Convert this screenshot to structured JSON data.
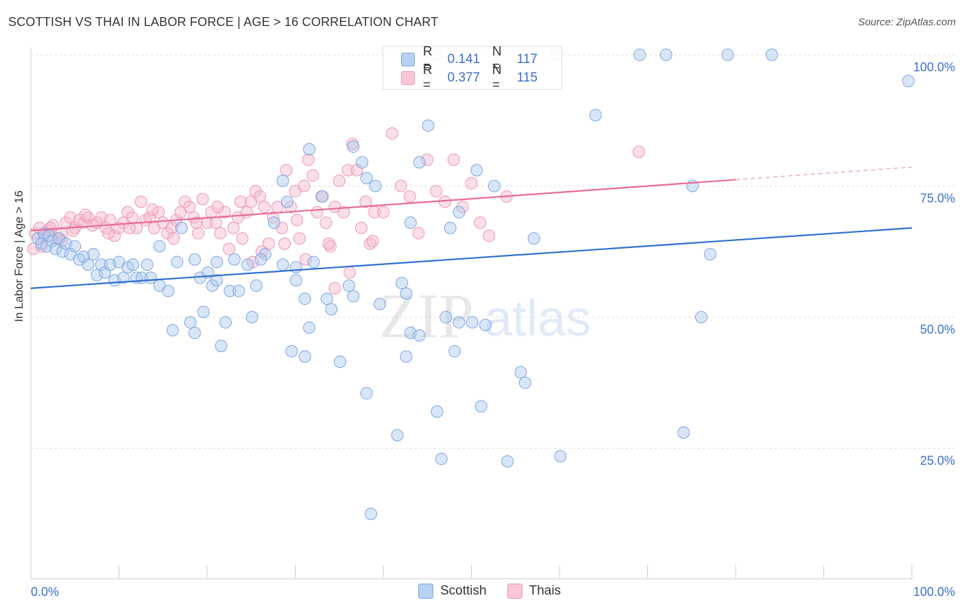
{
  "header": {
    "title": "SCOTTISH VS THAI IN LABOR FORCE | AGE > 16 CORRELATION CHART",
    "source": "Source: ZipAtlas.com"
  },
  "legend": {
    "rows": [
      {
        "r_label": "R =",
        "r_value": "0.141",
        "n_label": "N =",
        "n_value": "117"
      },
      {
        "r_label": "R =",
        "r_value": "0.377",
        "n_label": "N =",
        "n_value": "115"
      }
    ],
    "bottom": [
      "Scottish",
      "Thais"
    ]
  },
  "colors": {
    "scottish_fill": "#aac8ef",
    "scottish_stroke": "#7aa6e0",
    "scottish_line": "#2f6fd0",
    "thai_fill": "#f6b9cc",
    "thai_stroke": "#ec96b2",
    "thai_line": "#e8699a",
    "tick_label": "#3a6fd0",
    "grid": "#d9d9d9"
  },
  "watermark": {
    "zip": "ZIP",
    "atlas": "atlas"
  },
  "chart_data": {
    "type": "scatter",
    "title": "SCOTTISH VS THAI IN LABOR FORCE | AGE > 16 CORRELATION CHART",
    "ylabel": "In Labor Force | Age > 16",
    "xlabel": "",
    "xlim": [
      0,
      100
    ],
    "ylim": [
      0,
      105
    ],
    "x_tick_labels": [
      "0.0%",
      "100.0%"
    ],
    "y_ticks": [
      {
        "value": 25,
        "label": "25.0%"
      },
      {
        "value": 50,
        "label": "50.0%"
      },
      {
        "value": 75,
        "label": "75.0%"
      },
      {
        "value": 100,
        "label": "100.0%"
      }
    ],
    "grid": true,
    "legend_position": "top-center",
    "series": [
      {
        "name": "Scottish",
        "R": 0.141,
        "N": 117,
        "trend": {
          "x0": 0,
          "y0": 55.5,
          "x1": 100,
          "y1": 67.0
        },
        "points": [
          [
            0.8,
            65
          ],
          [
            1.2,
            64
          ],
          [
            1.5,
            66
          ],
          [
            1.8,
            63.5
          ],
          [
            2.1,
            65.5
          ],
          [
            2.4,
            64.5
          ],
          [
            2.8,
            63
          ],
          [
            3.2,
            65
          ],
          [
            3.6,
            62.5
          ],
          [
            4.0,
            64
          ],
          [
            4.5,
            62
          ],
          [
            5.0,
            63.5
          ],
          [
            5.5,
            61
          ],
          [
            6.0,
            61.5
          ],
          [
            6.5,
            60
          ],
          [
            7.1,
            62
          ],
          [
            7.5,
            58
          ],
          [
            8.0,
            60
          ],
          [
            8.4,
            58.5
          ],
          [
            9.0,
            60
          ],
          [
            9.5,
            57
          ],
          [
            10.0,
            60.5
          ],
          [
            10.5,
            57.5
          ],
          [
            11.0,
            59.5
          ],
          [
            11.6,
            60
          ],
          [
            12.0,
            57.5
          ],
          [
            12.6,
            57.5
          ],
          [
            13.2,
            60
          ],
          [
            13.6,
            57.5
          ],
          [
            14.6,
            56
          ],
          [
            14.6,
            63.5
          ],
          [
            15.6,
            55
          ],
          [
            16.1,
            47.5
          ],
          [
            16.6,
            60.5
          ],
          [
            17.1,
            67
          ],
          [
            18.1,
            49
          ],
          [
            18.6,
            61
          ],
          [
            19.2,
            57.5
          ],
          [
            19.6,
            51
          ],
          [
            20.1,
            58.5
          ],
          [
            20.6,
            56
          ],
          [
            21.1,
            57
          ],
          [
            21.6,
            44.5
          ],
          [
            22.1,
            49
          ],
          [
            22.6,
            55
          ],
          [
            23.6,
            55
          ],
          [
            23.1,
            61
          ],
          [
            24.6,
            60
          ],
          [
            25.1,
            50
          ],
          [
            25.6,
            56
          ],
          [
            26.6,
            62
          ],
          [
            27.6,
            68
          ],
          [
            28.6,
            76
          ],
          [
            29.1,
            72
          ],
          [
            29.6,
            43.5
          ],
          [
            30.1,
            59.5
          ],
          [
            31.1,
            42.5
          ],
          [
            31.6,
            82
          ],
          [
            31.1,
            53.5
          ],
          [
            31.6,
            48
          ],
          [
            33.1,
            73
          ],
          [
            33.6,
            53.5
          ],
          [
            34.1,
            51.5
          ],
          [
            35.1,
            41.5
          ],
          [
            36.1,
            56
          ],
          [
            36.6,
            54
          ],
          [
            36.6,
            82.5
          ],
          [
            37.6,
            79.5
          ],
          [
            38.1,
            76.5
          ],
          [
            38.1,
            35.5
          ],
          [
            38.6,
            12.5
          ],
          [
            39.1,
            75
          ],
          [
            39.6,
            52.5
          ],
          [
            41.6,
            27.5
          ],
          [
            42.1,
            56.5
          ],
          [
            42.6,
            42.5
          ],
          [
            42.6,
            54.5
          ],
          [
            43.1,
            47
          ],
          [
            43.1,
            68
          ],
          [
            44.1,
            79.5
          ],
          [
            44.1,
            46.5
          ],
          [
            45.1,
            86.5
          ],
          [
            46.1,
            32
          ],
          [
            46.6,
            23
          ],
          [
            47.1,
            50
          ],
          [
            47.6,
            67
          ],
          [
            48.1,
            43.5
          ],
          [
            48.6,
            70
          ],
          [
            48.6,
            49
          ],
          [
            50.1,
            49
          ],
          [
            50.6,
            78
          ],
          [
            51.1,
            33
          ],
          [
            51.6,
            48.5
          ],
          [
            52.6,
            75
          ],
          [
            54.1,
            22.5
          ],
          [
            55.6,
            39.5
          ],
          [
            56.1,
            37.5
          ],
          [
            57.1,
            65
          ],
          [
            60.1,
            23.5
          ],
          [
            64.1,
            88.5
          ],
          [
            69.1,
            100
          ],
          [
            72.1,
            100
          ],
          [
            74.1,
            28
          ],
          [
            75.1,
            75
          ],
          [
            76.1,
            50
          ],
          [
            77.1,
            62
          ],
          [
            79.1,
            100
          ],
          [
            84.1,
            100
          ],
          [
            99.6,
            95
          ],
          [
            46.1,
            100
          ],
          [
            59.6,
            100
          ],
          [
            26.1,
            61
          ],
          [
            28.6,
            60
          ],
          [
            21.1,
            60.5
          ],
          [
            18.6,
            47
          ],
          [
            32.1,
            60.5
          ],
          [
            30.1,
            57
          ]
        ]
      },
      {
        "name": "Thais",
        "R": 0.377,
        "N": 115,
        "trend": {
          "x0": 0,
          "y0": 66.5,
          "x1": 80,
          "y1": 76.2,
          "dash_to_x": 100,
          "dash_to_y": 78.6
        },
        "points": [
          [
            0.5,
            66
          ],
          [
            1.0,
            67
          ],
          [
            1.5,
            65.5
          ],
          [
            2.0,
            66.5
          ],
          [
            2.5,
            67.5
          ],
          [
            3.0,
            65
          ],
          [
            3.5,
            66
          ],
          [
            4.0,
            68
          ],
          [
            4.5,
            69
          ],
          [
            5.0,
            67
          ],
          [
            5.5,
            68.5
          ],
          [
            6.0,
            68
          ],
          [
            6.5,
            69
          ],
          [
            7.0,
            67.5
          ],
          [
            7.5,
            68
          ],
          [
            8.0,
            69
          ],
          [
            8.5,
            67
          ],
          [
            9.0,
            68.5
          ],
          [
            9.5,
            65.5
          ],
          [
            10.0,
            67
          ],
          [
            10.5,
            68
          ],
          [
            11.0,
            70
          ],
          [
            11.5,
            69
          ],
          [
            12.0,
            67
          ],
          [
            12.5,
            72
          ],
          [
            13.0,
            68.5
          ],
          [
            13.5,
            69
          ],
          [
            14.0,
            67
          ],
          [
            14.5,
            70
          ],
          [
            15.0,
            68
          ],
          [
            15.5,
            66
          ],
          [
            16.0,
            67
          ],
          [
            16.5,
            68.5
          ],
          [
            17.0,
            70
          ],
          [
            17.5,
            72
          ],
          [
            18.0,
            71
          ],
          [
            18.5,
            69
          ],
          [
            19.0,
            66
          ],
          [
            19.5,
            72.5
          ],
          [
            20.0,
            68
          ],
          [
            20.5,
            70
          ],
          [
            21.0,
            68
          ],
          [
            21.5,
            66
          ],
          [
            22.0,
            70
          ],
          [
            22.5,
            63
          ],
          [
            23.0,
            67
          ],
          [
            23.5,
            69
          ],
          [
            24.0,
            65
          ],
          [
            24.5,
            70
          ],
          [
            25.0,
            72
          ],
          [
            25.5,
            74
          ],
          [
            26.0,
            73
          ],
          [
            26.5,
            71
          ],
          [
            27.0,
            64
          ],
          [
            27.5,
            69
          ],
          [
            28.0,
            71
          ],
          [
            28.5,
            67
          ],
          [
            29.0,
            78
          ],
          [
            29.5,
            71
          ],
          [
            30.0,
            74
          ],
          [
            30.5,
            65
          ],
          [
            31.0,
            75
          ],
          [
            31.5,
            80
          ],
          [
            32.0,
            77
          ],
          [
            32.5,
            70
          ],
          [
            33.0,
            73
          ],
          [
            33.5,
            68
          ],
          [
            34.0,
            63.5
          ],
          [
            34.5,
            71
          ],
          [
            35.0,
            76
          ],
          [
            35.5,
            70
          ],
          [
            36.0,
            78
          ],
          [
            36.5,
            83
          ],
          [
            37.0,
            78
          ],
          [
            37.5,
            67
          ],
          [
            38.0,
            72
          ],
          [
            38.5,
            64
          ],
          [
            39.0,
            70
          ],
          [
            40.0,
            70
          ],
          [
            41.0,
            85
          ],
          [
            42.0,
            75
          ],
          [
            43.0,
            73
          ],
          [
            44.0,
            66
          ],
          [
            45.0,
            80
          ],
          [
            46.0,
            74
          ],
          [
            47.0,
            72
          ],
          [
            48.0,
            80
          ],
          [
            49.0,
            71
          ],
          [
            50.0,
            75.5
          ],
          [
            51.0,
            68
          ],
          [
            52.0,
            65.5
          ],
          [
            54.0,
            73
          ],
          [
            69.0,
            81.5
          ],
          [
            3.5,
            64.5
          ],
          [
            4.8,
            66.5
          ],
          [
            6.2,
            69.5
          ],
          [
            8.8,
            66
          ],
          [
            11.2,
            67
          ],
          [
            13.8,
            70.5
          ],
          [
            16.2,
            65
          ],
          [
            18.8,
            68
          ],
          [
            21.2,
            71
          ],
          [
            23.8,
            72
          ],
          [
            26.2,
            62.5
          ],
          [
            28.8,
            64
          ],
          [
            31.2,
            61
          ],
          [
            33.8,
            64
          ],
          [
            36.2,
            58.5
          ],
          [
            38.8,
            64.5
          ],
          [
            0.3,
            63
          ],
          [
            1.2,
            63.5
          ],
          [
            2.2,
            67
          ],
          [
            34.5,
            55.5
          ],
          [
            30.2,
            68.5
          ],
          [
            25.2,
            60.5
          ]
        ]
      }
    ]
  }
}
